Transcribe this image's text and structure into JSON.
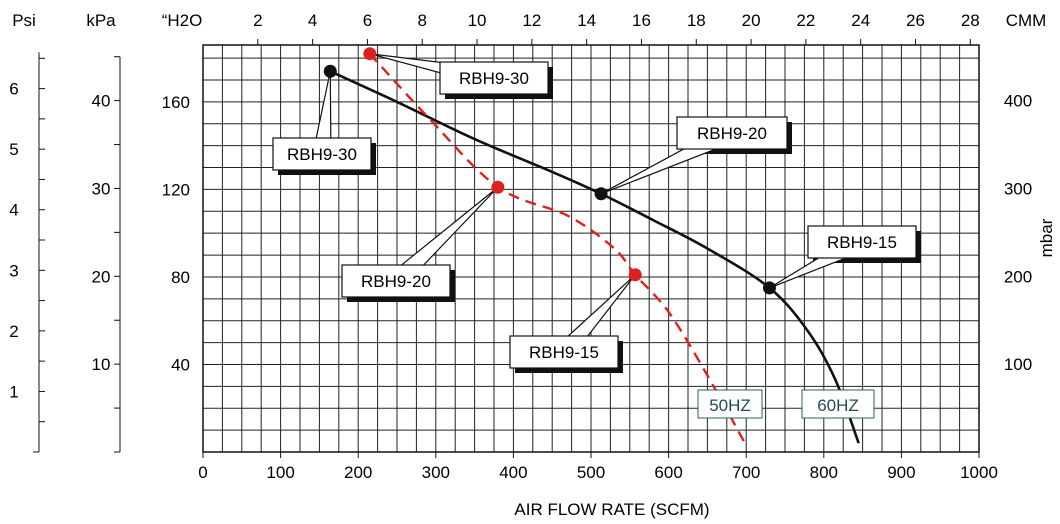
{
  "chart_data": {
    "type": "line",
    "xlabel": "AIR FLOW RATE (SCFM)",
    "xlim": [
      0,
      1000
    ],
    "x_ticks": [
      "0",
      "100",
      "200",
      "300",
      "400",
      "500",
      "600",
      "700",
      "800",
      "900",
      "1000"
    ],
    "top_axis": {
      "unit_label": "CMM",
      "ticks": [
        "2",
        "4",
        "6",
        "8",
        "10",
        "12",
        "14",
        "16",
        "18",
        "20",
        "22",
        "24",
        "26",
        "28"
      ]
    },
    "ylim": [
      0,
      186
    ],
    "left_axes": [
      {
        "label": "“H2O",
        "ticks": [
          "40",
          "80",
          "120",
          "160"
        ]
      },
      {
        "label": "kPa",
        "ticks": [
          "10",
          "20",
          "30",
          "40"
        ]
      },
      {
        "label": "Psi",
        "ticks": [
          "1",
          "2",
          "3",
          "4",
          "5",
          "6"
        ]
      }
    ],
    "right_axis": {
      "label": "mbar",
      "ticks": [
        "100",
        "200",
        "300",
        "400"
      ]
    },
    "grid": true,
    "series": [
      {
        "name": "60HZ",
        "color": "#111111",
        "style": "solid",
        "x": [
          164,
          250,
          350,
          450,
          513,
          580,
          650,
          730,
          780,
          815,
          845
        ],
        "y": [
          174,
          160,
          143,
          128,
          118,
          106,
          93,
          75,
          55,
          33,
          4
        ],
        "markers": [
          {
            "label": "RBH9-30",
            "x": 164,
            "y": 174
          },
          {
            "label": "RBH9-20",
            "x": 513,
            "y": 118
          },
          {
            "label": "RBH9-15",
            "x": 730,
            "y": 75
          }
        ]
      },
      {
        "name": "50HZ",
        "color": "#e02020",
        "style": "dashed",
        "x": [
          215,
          290,
          380,
          470,
          530,
          557,
          600,
          650,
          700
        ],
        "y": [
          182,
          153,
          121,
          108,
          93,
          81,
          64,
          35,
          3
        ],
        "markers": [
          {
            "label": "RBH9-30",
            "x": 215,
            "y": 182
          },
          {
            "label": "RBH9-20",
            "x": 380,
            "y": 121
          },
          {
            "label": "RBH9-15",
            "x": 557,
            "y": 81
          }
        ]
      }
    ]
  }
}
